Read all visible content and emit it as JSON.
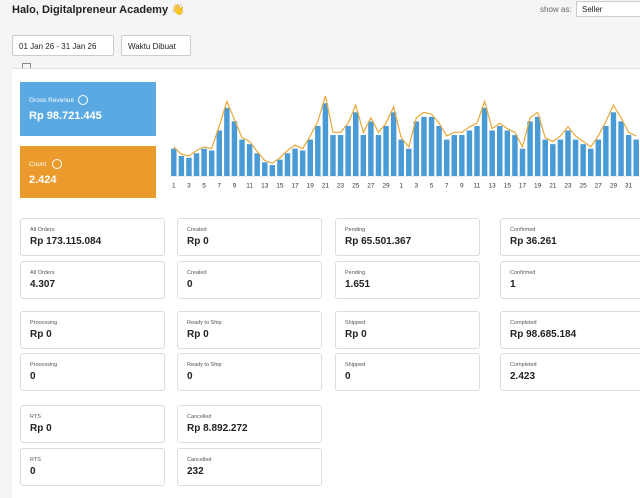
{
  "header": {
    "title": "Halo, Digitalpreneur Academy 👋",
    "show_as_label": "show as:",
    "show_as_value": "Seller"
  },
  "filters": {
    "date_range": "01 Jan 26 - 31 Jan 26",
    "time_type": "Waktu Dibuat"
  },
  "summary": [
    {
      "label": "Gross Revenue",
      "value": "Rp 98.721.445"
    },
    {
      "label": "Count",
      "value": "2.424"
    }
  ],
  "chart_data": {
    "type": "bar",
    "categories": [
      "1",
      null,
      "3",
      null,
      "5",
      null,
      "7",
      null,
      "9",
      null,
      "11",
      null,
      "13",
      null,
      "15",
      null,
      "17",
      null,
      "19",
      null,
      "21",
      null,
      "23",
      null,
      "25",
      null,
      "27",
      null,
      "29",
      null,
      "1",
      null,
      "3",
      null,
      "5",
      null,
      "7",
      null,
      "9",
      null,
      "11",
      null,
      "13",
      null,
      "15",
      null,
      "17",
      null,
      "19",
      null,
      "21",
      null,
      "23",
      null,
      "25",
      null,
      "27",
      null,
      "29",
      null,
      "31",
      null
    ],
    "ylim": [
      0,
      100
    ],
    "series": [
      {
        "color": "#4a9ad6",
        "values": [
          30,
          22,
          20,
          25,
          30,
          28,
          50,
          75,
          60,
          40,
          35,
          25,
          15,
          12,
          18,
          25,
          30,
          28,
          40,
          55,
          80,
          45,
          45,
          55,
          70,
          45,
          60,
          45,
          55,
          70,
          40,
          30,
          60,
          65,
          65,
          55,
          40,
          45,
          45,
          50,
          55,
          75,
          50,
          55,
          50,
          45,
          30,
          60,
          65,
          40,
          35,
          40,
          50,
          40,
          35,
          30,
          40,
          55,
          70,
          60,
          45,
          40
        ]
      },
      {
        "type": "line",
        "color": "#e8a838",
        "values": [
          32,
          24,
          22,
          28,
          32,
          30,
          55,
          82,
          62,
          42,
          38,
          27,
          17,
          14,
          20,
          28,
          34,
          30,
          44,
          60,
          88,
          48,
          48,
          58,
          78,
          48,
          64,
          48,
          58,
          76,
          42,
          32,
          64,
          70,
          68,
          58,
          44,
          48,
          48,
          54,
          58,
          82,
          52,
          58,
          52,
          48,
          32,
          64,
          70,
          42,
          38,
          44,
          54,
          44,
          38,
          32,
          44,
          60,
          78,
          64,
          48,
          44
        ]
      }
    ]
  },
  "cards": [
    [
      {
        "label": "All Orders",
        "value": "Rp 173.115.084"
      },
      {
        "label": "Created",
        "value": "Rp 0"
      },
      {
        "label": "Pending",
        "value": "Rp 65.501.367"
      },
      {
        "label": "Confirmed",
        "value": "Rp 36.261"
      }
    ],
    [
      {
        "label": "All Orders",
        "value": "4.307"
      },
      {
        "label": "Created",
        "value": "0"
      },
      {
        "label": "Pending",
        "value": "1.651"
      },
      {
        "label": "Confirmed",
        "value": "1"
      }
    ],
    [
      {
        "label": "Processing",
        "value": "Rp 0"
      },
      {
        "label": "Ready to Ship",
        "value": "Rp 0"
      },
      {
        "label": "Shipped",
        "value": "Rp 0"
      },
      {
        "label": "Completed",
        "value": "Rp 98.685.184"
      }
    ],
    [
      {
        "label": "Processing",
        "value": "0"
      },
      {
        "label": "Ready to Ship",
        "value": "0"
      },
      {
        "label": "Shipped",
        "value": "0"
      },
      {
        "label": "Completed",
        "value": "2.423"
      }
    ],
    [
      {
        "label": "RTS",
        "value": "Rp 0"
      },
      {
        "label": "Cancelled",
        "value": "Rp 8.892.272"
      }
    ],
    [
      {
        "label": "RTS",
        "value": "0"
      },
      {
        "label": "Cancelled",
        "value": "232"
      }
    ]
  ]
}
